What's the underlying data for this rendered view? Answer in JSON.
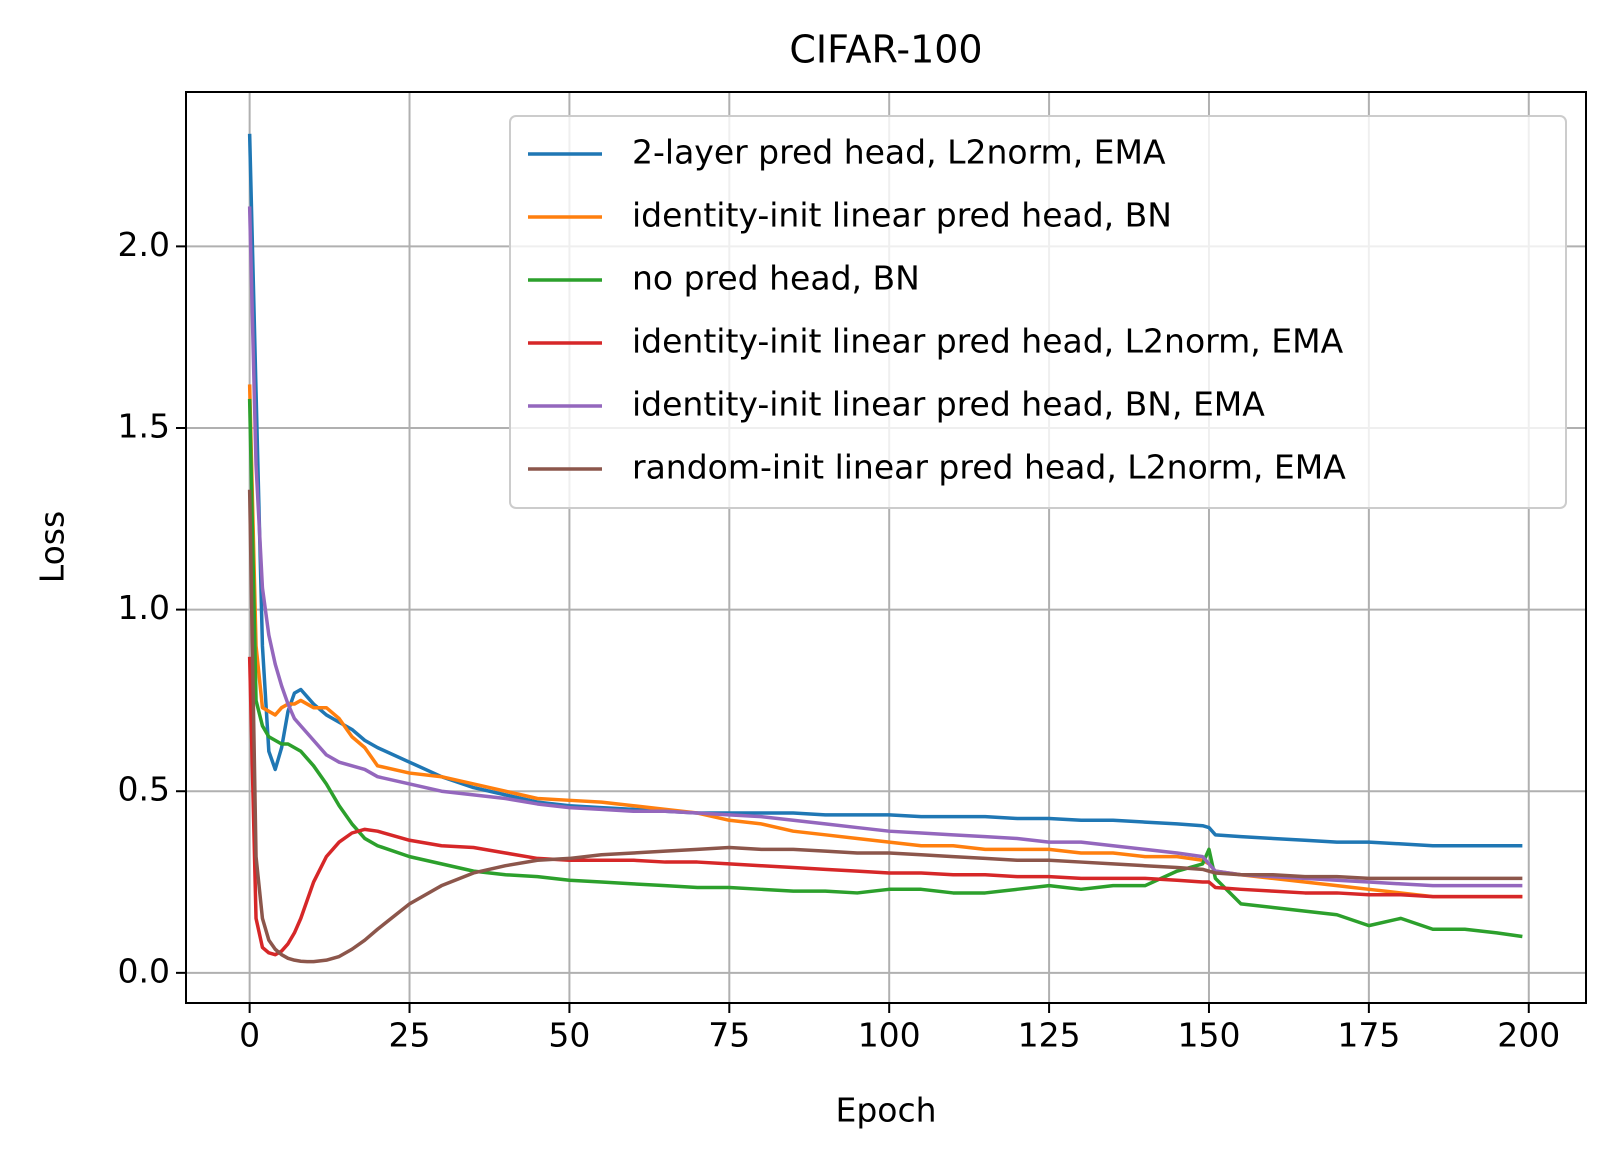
{
  "chart_data": {
    "type": "line",
    "title": "CIFAR-100",
    "xlabel": "Epoch",
    "ylabel": "Loss",
    "x": [
      0,
      1,
      2,
      3,
      4,
      5,
      6,
      7,
      8,
      9,
      10,
      12,
      14,
      16,
      18,
      20,
      25,
      30,
      35,
      40,
      45,
      50,
      55,
      60,
      65,
      70,
      75,
      80,
      85,
      90,
      95,
      100,
      105,
      110,
      115,
      120,
      125,
      130,
      135,
      140,
      145,
      149,
      150,
      151,
      155,
      160,
      165,
      170,
      175,
      180,
      185,
      190,
      195,
      199
    ],
    "series": [
      {
        "name": "2-layer pred head, L2norm, EMA",
        "color": "#1f77b4",
        "values": [
          2.31,
          1.6,
          0.9,
          0.61,
          0.56,
          0.62,
          0.72,
          0.77,
          0.78,
          0.76,
          0.74,
          0.71,
          0.69,
          0.67,
          0.64,
          0.62,
          0.58,
          0.54,
          0.51,
          0.49,
          0.47,
          0.46,
          0.455,
          0.45,
          0.445,
          0.44,
          0.44,
          0.44,
          0.44,
          0.435,
          0.435,
          0.435,
          0.43,
          0.43,
          0.43,
          0.425,
          0.425,
          0.42,
          0.42,
          0.415,
          0.41,
          0.405,
          0.4,
          0.38,
          0.375,
          0.37,
          0.365,
          0.36,
          0.36,
          0.355,
          0.35,
          0.35,
          0.35,
          0.35
        ]
      },
      {
        "name": "identity-init linear pred head, BN",
        "color": "#ff7f0e",
        "values": [
          1.62,
          0.9,
          0.73,
          0.72,
          0.71,
          0.73,
          0.74,
          0.74,
          0.75,
          0.74,
          0.73,
          0.73,
          0.7,
          0.65,
          0.62,
          0.57,
          0.55,
          0.54,
          0.52,
          0.5,
          0.48,
          0.475,
          0.47,
          0.46,
          0.45,
          0.44,
          0.42,
          0.41,
          0.39,
          0.38,
          0.37,
          0.36,
          0.35,
          0.35,
          0.34,
          0.34,
          0.34,
          0.33,
          0.33,
          0.32,
          0.32,
          0.31,
          0.3,
          0.28,
          0.27,
          0.26,
          0.25,
          0.24,
          0.23,
          0.22,
          0.21,
          0.21,
          0.21,
          0.21
        ]
      },
      {
        "name": "no pred head, BN",
        "color": "#2ca02c",
        "values": [
          1.58,
          0.75,
          0.68,
          0.65,
          0.64,
          0.63,
          0.63,
          0.62,
          0.61,
          0.59,
          0.57,
          0.52,
          0.46,
          0.41,
          0.37,
          0.35,
          0.32,
          0.3,
          0.28,
          0.27,
          0.265,
          0.255,
          0.25,
          0.245,
          0.24,
          0.235,
          0.235,
          0.23,
          0.225,
          0.225,
          0.22,
          0.23,
          0.23,
          0.22,
          0.22,
          0.23,
          0.24,
          0.23,
          0.24,
          0.24,
          0.28,
          0.3,
          0.34,
          0.26,
          0.19,
          0.18,
          0.17,
          0.16,
          0.13,
          0.15,
          0.12,
          0.12,
          0.11,
          0.1
        ]
      },
      {
        "name": "identity-init linear pred head, L2norm, EMA",
        "color": "#d62728",
        "values": [
          0.87,
          0.15,
          0.07,
          0.055,
          0.05,
          0.06,
          0.08,
          0.11,
          0.15,
          0.2,
          0.25,
          0.32,
          0.36,
          0.385,
          0.395,
          0.39,
          0.365,
          0.35,
          0.345,
          0.33,
          0.315,
          0.31,
          0.31,
          0.31,
          0.305,
          0.305,
          0.3,
          0.295,
          0.29,
          0.285,
          0.28,
          0.275,
          0.275,
          0.27,
          0.27,
          0.265,
          0.265,
          0.26,
          0.26,
          0.26,
          0.255,
          0.25,
          0.25,
          0.235,
          0.23,
          0.225,
          0.22,
          0.22,
          0.215,
          0.215,
          0.21,
          0.21,
          0.21,
          0.21
        ]
      },
      {
        "name": "identity-init linear pred head, BN, EMA",
        "color": "#9467bd",
        "values": [
          2.11,
          1.4,
          1.06,
          0.93,
          0.85,
          0.79,
          0.74,
          0.7,
          0.68,
          0.66,
          0.64,
          0.6,
          0.58,
          0.57,
          0.56,
          0.54,
          0.52,
          0.5,
          0.49,
          0.48,
          0.465,
          0.455,
          0.45,
          0.445,
          0.445,
          0.44,
          0.435,
          0.43,
          0.42,
          0.41,
          0.4,
          0.39,
          0.385,
          0.38,
          0.375,
          0.37,
          0.36,
          0.36,
          0.35,
          0.34,
          0.33,
          0.32,
          0.3,
          0.28,
          0.27,
          0.265,
          0.26,
          0.255,
          0.25,
          0.245,
          0.24,
          0.24,
          0.24,
          0.24
        ]
      },
      {
        "name": "random-init linear pred head, L2norm, EMA",
        "color": "#8c564b",
        "values": [
          1.33,
          0.32,
          0.15,
          0.09,
          0.065,
          0.05,
          0.04,
          0.035,
          0.032,
          0.031,
          0.031,
          0.035,
          0.045,
          0.065,
          0.09,
          0.12,
          0.19,
          0.24,
          0.275,
          0.295,
          0.31,
          0.315,
          0.325,
          0.33,
          0.335,
          0.34,
          0.345,
          0.34,
          0.34,
          0.335,
          0.33,
          0.33,
          0.325,
          0.32,
          0.315,
          0.31,
          0.31,
          0.305,
          0.3,
          0.295,
          0.29,
          0.285,
          0.28,
          0.275,
          0.27,
          0.27,
          0.265,
          0.265,
          0.26,
          0.26,
          0.26,
          0.26,
          0.26,
          0.26
        ]
      }
    ],
    "xlim": [
      -9.95,
      208.95
    ],
    "ylim": [
      -0.083,
      2.425
    ],
    "xticks": [
      0,
      25,
      50,
      75,
      100,
      125,
      150,
      175,
      200
    ],
    "yticks": [
      {
        "value": 0,
        "label": "0.0"
      },
      0.5,
      {
        "value": 1,
        "label": "1.0"
      },
      1.5,
      {
        "value": 2,
        "label": "2.0"
      }
    ],
    "grid": true,
    "legend": "upper right"
  }
}
